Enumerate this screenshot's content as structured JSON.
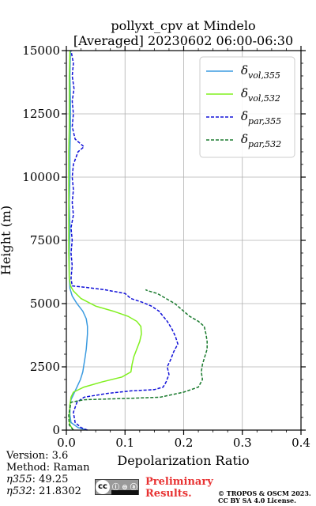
{
  "chart_data": {
    "type": "line",
    "title_line1": "pollyxt_cpv at Mindelo",
    "title_line2": "[Averaged] 20230602 06:00-06:30",
    "xlabel": "Depolarization Ratio",
    "ylabel": "Height (m)",
    "xlim": [
      0.0,
      0.4
    ],
    "ylim": [
      0,
      15000
    ],
    "x_ticks": [
      "0.0",
      "0.1",
      "0.2",
      "0.3",
      "0.4"
    ],
    "y_ticks": [
      "0",
      "2500",
      "5000",
      "7500",
      "10000",
      "12500",
      "15000"
    ],
    "x_tick_values": [
      0.0,
      0.1,
      0.2,
      0.3,
      0.4
    ],
    "y_tick_values": [
      0,
      2500,
      5000,
      7500,
      10000,
      12500,
      15000
    ],
    "grid": true,
    "legend_position": "top-right",
    "series": [
      {
        "name": "δ_vol,355",
        "symbol": "δ",
        "sub": "vol,355",
        "color": "#3b9be0",
        "style": "solid",
        "points": [
          [
            0.035,
            0
          ],
          [
            0.02,
            100
          ],
          [
            0.008,
            300
          ],
          [
            0.006,
            600
          ],
          [
            0.006,
            1000
          ],
          [
            0.008,
            1200
          ],
          [
            0.012,
            1400
          ],
          [
            0.018,
            1700
          ],
          [
            0.024,
            2000
          ],
          [
            0.028,
            2300
          ],
          [
            0.03,
            2600
          ],
          [
            0.032,
            2900
          ],
          [
            0.034,
            3200
          ],
          [
            0.035,
            3500
          ],
          [
            0.036,
            3800
          ],
          [
            0.036,
            4100
          ],
          [
            0.034,
            4400
          ],
          [
            0.028,
            4700
          ],
          [
            0.018,
            5000
          ],
          [
            0.01,
            5300
          ],
          [
            0.006,
            5600
          ],
          [
            0.005,
            6000
          ],
          [
            0.005,
            7000
          ],
          [
            0.006,
            8000
          ],
          [
            0.005,
            9000
          ],
          [
            0.006,
            10000
          ],
          [
            0.006,
            11000
          ],
          [
            0.007,
            12000
          ],
          [
            0.007,
            13000
          ],
          [
            0.006,
            14000
          ],
          [
            0.007,
            15000
          ]
        ]
      },
      {
        "name": "δ_vol,532",
        "symbol": "δ",
        "sub": "vol,532",
        "color": "#80f01e",
        "style": "solid",
        "points": [
          [
            0.012,
            0
          ],
          [
            0.006,
            200
          ],
          [
            0.005,
            500
          ],
          [
            0.006,
            1000
          ],
          [
            0.008,
            1300
          ],
          [
            0.012,
            1500
          ],
          [
            0.03,
            1700
          ],
          [
            0.06,
            1900
          ],
          [
            0.095,
            2100
          ],
          [
            0.11,
            2300
          ],
          [
            0.112,
            2600
          ],
          [
            0.115,
            2900
          ],
          [
            0.12,
            3200
          ],
          [
            0.125,
            3500
          ],
          [
            0.128,
            3800
          ],
          [
            0.127,
            4100
          ],
          [
            0.12,
            4300
          ],
          [
            0.105,
            4500
          ],
          [
            0.08,
            4700
          ],
          [
            0.05,
            4900
          ],
          [
            0.025,
            5200
          ],
          [
            0.012,
            5500
          ],
          [
            0.007,
            5700
          ],
          [
            0.005,
            6000
          ],
          [
            0.004,
            7000
          ],
          [
            0.004,
            8000
          ],
          [
            0.004,
            9000
          ],
          [
            0.004,
            10000
          ],
          [
            0.004,
            11000
          ],
          [
            0.005,
            12000
          ],
          [
            0.005,
            13000
          ],
          [
            0.005,
            14000
          ],
          [
            0.006,
            15000
          ]
        ]
      },
      {
        "name": "δ_par,355",
        "symbol": "δ",
        "sub": "par,355",
        "color": "#1010d8",
        "style": "dashed",
        "points": [
          [
            0.036,
            0
          ],
          [
            0.025,
            100
          ],
          [
            0.015,
            300
          ],
          [
            0.012,
            700
          ],
          [
            0.018,
            1100
          ],
          [
            0.03,
            1300
          ],
          [
            0.07,
            1450
          ],
          [
            0.11,
            1550
          ],
          [
            0.15,
            1600
          ],
          [
            0.165,
            1700
          ],
          [
            0.17,
            1900
          ],
          [
            0.175,
            2200
          ],
          [
            0.172,
            2500
          ],
          [
            0.178,
            2800
          ],
          [
            0.183,
            3100
          ],
          [
            0.19,
            3400
          ],
          [
            0.186,
            3700
          ],
          [
            0.18,
            4000
          ],
          [
            0.172,
            4300
          ],
          [
            0.165,
            4500
          ],
          [
            0.158,
            4700
          ],
          [
            0.145,
            4900
          ],
          [
            0.13,
            5050
          ],
          [
            0.11,
            5200
          ],
          [
            0.1,
            5400
          ],
          [
            0.065,
            5550
          ],
          [
            0.03,
            5650
          ],
          [
            0.01,
            5700
          ],
          [
            0.008,
            6000
          ],
          [
            0.01,
            6500
          ],
          [
            0.008,
            7000
          ],
          [
            0.01,
            7500
          ],
          [
            0.008,
            8000
          ],
          [
            0.012,
            8500
          ],
          [
            0.01,
            9000
          ],
          [
            0.012,
            9500
          ],
          [
            0.01,
            10000
          ],
          [
            0.012,
            10500
          ],
          [
            0.02,
            11000
          ],
          [
            0.03,
            11200
          ],
          [
            0.015,
            11500
          ],
          [
            0.01,
            12000
          ],
          [
            0.012,
            12500
          ],
          [
            0.01,
            13000
          ],
          [
            0.013,
            13500
          ],
          [
            0.01,
            14000
          ],
          [
            0.012,
            14500
          ],
          [
            0.008,
            15000
          ]
        ]
      },
      {
        "name": "δ_par,532",
        "symbol": "δ",
        "sub": "par,532",
        "color": "#1a7a2e",
        "style": "dashed",
        "points": [
          [
            0.012,
            0
          ],
          [
            0.005,
            200
          ],
          [
            0.004,
            600
          ],
          [
            0.008,
            1100
          ],
          [
            0.03,
            1200
          ],
          [
            0.1,
            1250
          ],
          [
            0.16,
            1300
          ],
          [
            0.2,
            1500
          ],
          [
            0.225,
            1700
          ],
          [
            0.232,
            2000
          ],
          [
            0.23,
            2300
          ],
          [
            0.232,
            2600
          ],
          [
            0.236,
            2900
          ],
          [
            0.24,
            3200
          ],
          [
            0.24,
            3500
          ],
          [
            0.238,
            3800
          ],
          [
            0.235,
            4100
          ],
          [
            0.225,
            4300
          ],
          [
            0.21,
            4500
          ],
          [
            0.195,
            4800
          ],
          [
            0.185,
            5000
          ],
          [
            0.17,
            5200
          ],
          [
            0.155,
            5400
          ],
          [
            0.14,
            5500
          ],
          [
            0.135,
            5550
          ]
        ]
      }
    ]
  },
  "meta": {
    "version": "Version: 3.6",
    "method": "Method: Raman",
    "eta355_symbol": "η355",
    "eta355_value": ":  49.25",
    "eta532_symbol": "η532",
    "eta532_value": ": 21.8302"
  },
  "badge": {
    "left": "cc",
    "mid": "ⓘ ⊜ ⓐ"
  },
  "prelim_line1": "Preliminary",
  "prelim_line2": "Results.",
  "license_line1": "© TROPOS & OSCM 2023.",
  "license_line2": "CC BY SA 4.0 License."
}
